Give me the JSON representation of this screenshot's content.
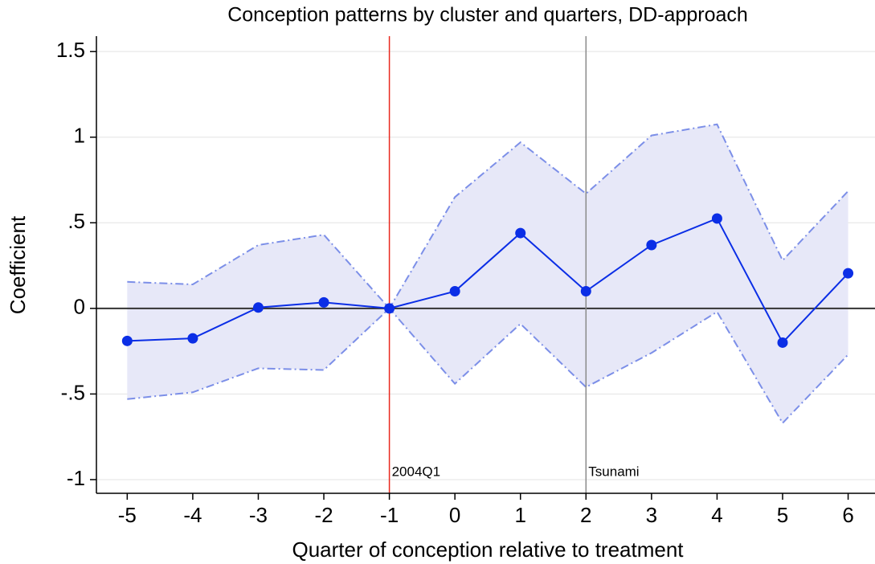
{
  "chart_data": {
    "type": "line",
    "title": "Conception patterns by cluster and quarters, DD-approach",
    "x_label": "Quarter of conception relative to treatment",
    "y_label": "Coefficient",
    "x": [
      -5,
      -4,
      -3,
      -2,
      -1,
      0,
      1,
      2,
      3,
      4,
      5,
      6
    ],
    "values": [
      -0.19,
      -0.175,
      0.005,
      0.035,
      0,
      0.1,
      0.44,
      0.1,
      0.37,
      0.525,
      -0.2,
      0.205
    ],
    "ci_upper": [
      0.155,
      0.14,
      0.37,
      0.43,
      0,
      0.65,
      0.97,
      0.67,
      1.01,
      1.075,
      0.28,
      0.685
    ],
    "ci_lower": [
      -0.53,
      -0.49,
      -0.35,
      -0.36,
      0,
      -0.44,
      -0.09,
      -0.46,
      -0.26,
      -0.02,
      -0.67,
      -0.27
    ],
    "color": "#0b2ee6",
    "band_color": "#e7e8f8",
    "band_edge_color": "#7c8fe8",
    "xlim": [
      -5.47,
      6.41
    ],
    "ylim": [
      -1.08,
      1.59
    ],
    "xticks": [
      -5,
      -4,
      -3,
      -2,
      -1,
      0,
      1,
      2,
      3,
      4,
      5,
      6
    ],
    "yticks": [
      -1,
      {
        "value": -0.5,
        "label": "-.5"
      },
      0,
      {
        "value": 0.5,
        "label": ".5"
      },
      1,
      1.5
    ],
    "grid": true,
    "reference_lines": [
      {
        "x": -1,
        "label": "2004Q1",
        "color": "#e8281e"
      },
      {
        "x": 2,
        "label": "Tsunami",
        "color": "#8a8a8a"
      }
    ]
  }
}
